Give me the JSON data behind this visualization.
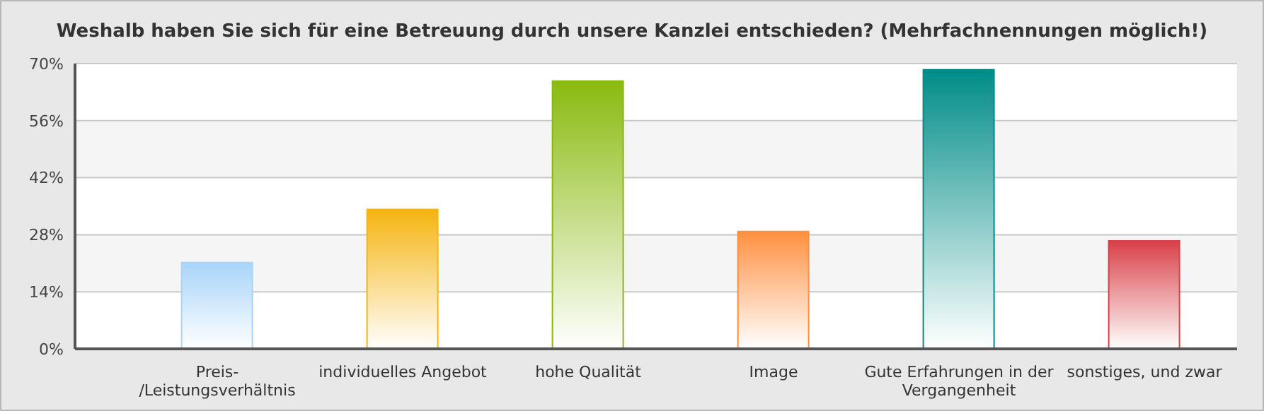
{
  "chart_data": {
    "type": "bar",
    "title": "Weshalb haben Sie sich für eine Betreuung durch unsere Kanzlei entschieden? (Mehrfachnennungen möglich!)",
    "categories": [
      "Preis-/Leistungsverhältnis",
      "individuelles Angebot",
      "hohe Qualität",
      "Image",
      "Gute Erfahrungen in der Vergangenheit",
      "sonstiges, und zwar"
    ],
    "values": [
      21.2,
      34.2,
      65.7,
      28.8,
      68.5,
      26.5
    ],
    "colors": [
      "#a8d4f8",
      "#f5b410",
      "#8aba10",
      "#ff9040",
      "#008c88",
      "#d84048"
    ],
    "ylim": [
      0,
      70
    ],
    "yticks": [
      {
        "value": 0,
        "label": "0%"
      },
      {
        "value": 14,
        "label": "14%"
      },
      {
        "value": 28,
        "label": "28%"
      },
      {
        "value": 42,
        "label": "42%"
      },
      {
        "value": 56,
        "label": "56%"
      },
      {
        "value": 70,
        "label": "70%"
      }
    ],
    "grid": "y"
  }
}
